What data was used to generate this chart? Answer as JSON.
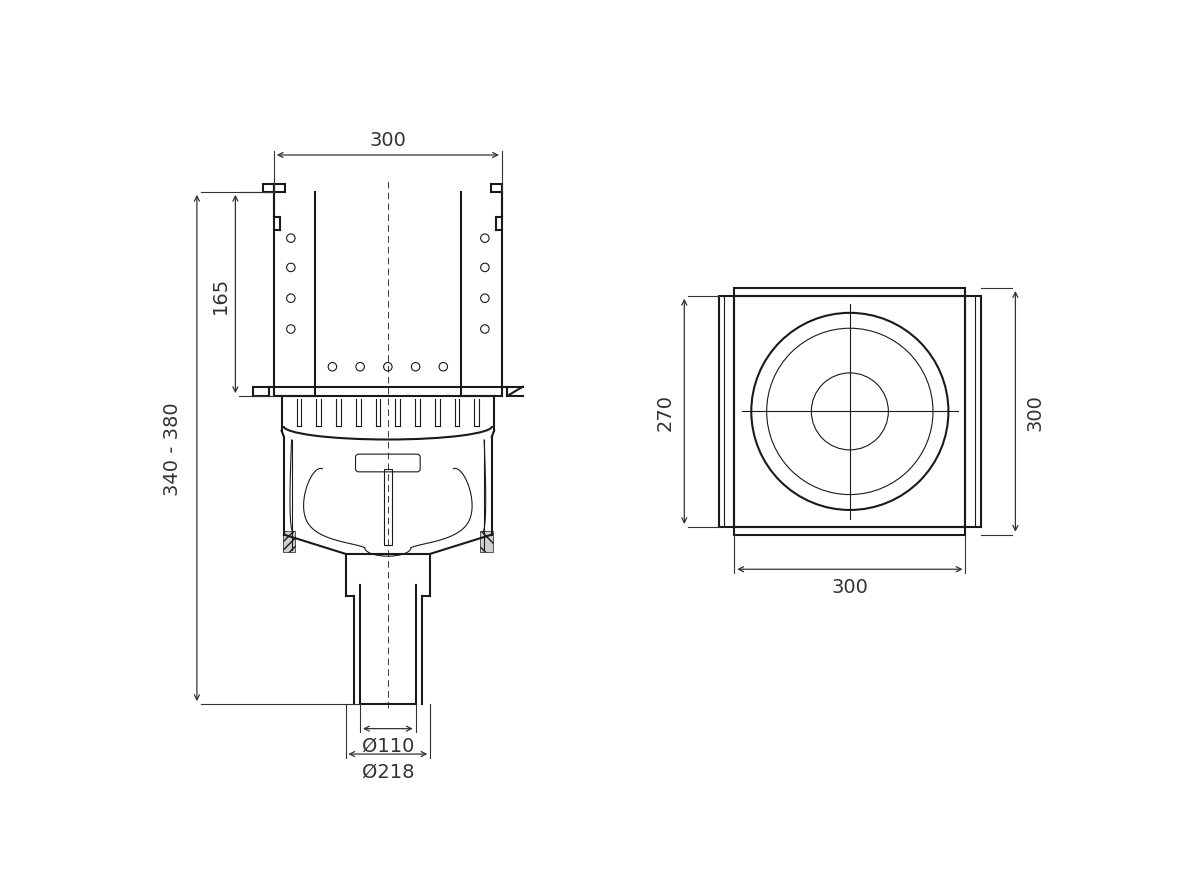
{
  "bg_color": "#ffffff",
  "line_color": "#1a1a1a",
  "dim_color": "#333333",
  "font_size_dim": 14,
  "annotations_left": {
    "dim_300_top": "300",
    "dim_165": "165",
    "dim_340_380": "340 - 380",
    "dim_110": "Ø110",
    "dim_218": "Ø218"
  },
  "annotations_right": {
    "dim_270": "270",
    "dim_300_bottom": "300",
    "dim_300_right": "300"
  }
}
